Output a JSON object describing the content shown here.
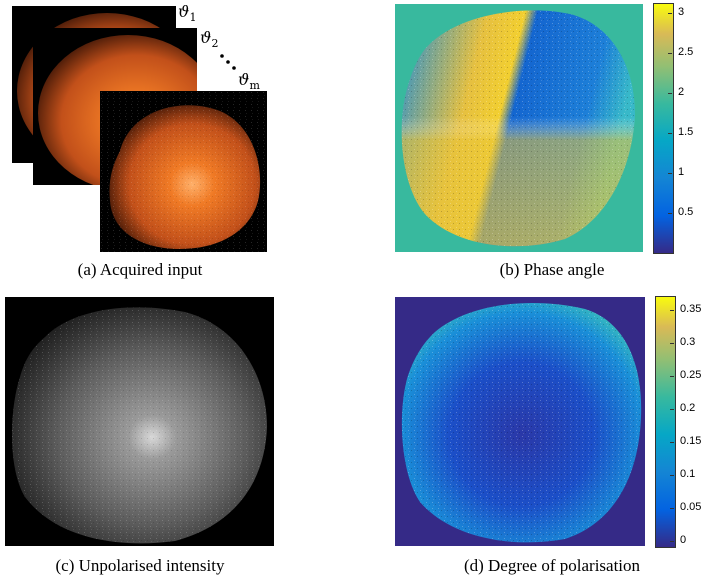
{
  "panels": {
    "a": {
      "caption": "(a) Acquired input",
      "angles": [
        "1",
        "2",
        "m"
      ]
    },
    "b": {
      "caption": "(b) Phase angle",
      "colorbar_ticks": [
        "3",
        "2.5",
        "2",
        "1.5",
        "1",
        "0.5"
      ]
    },
    "c": {
      "caption": "(c) Unpolarised intensity"
    },
    "d": {
      "caption": "(d) Degree of polarisation",
      "colorbar_ticks": [
        "0.35",
        "0.3",
        "0.25",
        "0.2",
        "0.15",
        "0.1",
        "0.05",
        "0"
      ]
    }
  },
  "colors": {
    "parula_low": "#352a87",
    "parula_mid": "#21b5a5",
    "parula_high": "#f9fb0e",
    "orange": "#e06a1a",
    "background": "#ffffff"
  }
}
